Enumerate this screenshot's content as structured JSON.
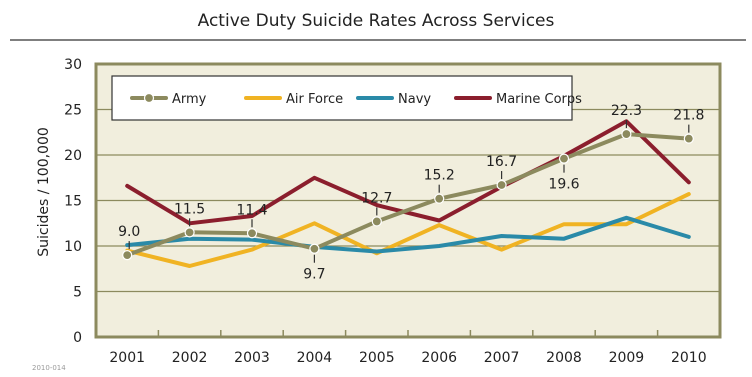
{
  "chart_data": {
    "type": "line",
    "title": "Active Duty Suicide Rates Across Services",
    "ylabel": "Suicides / 100,000",
    "xlabel": "",
    "footnote": "2010-014",
    "categories": [
      "2001",
      "2002",
      "2003",
      "2004",
      "2005",
      "2006",
      "2007",
      "2008",
      "2009",
      "2010"
    ],
    "ylim": [
      0,
      30
    ],
    "yticks": [
      0,
      5,
      10,
      15,
      20,
      25,
      30
    ],
    "grid": true,
    "legend_position": "top-left",
    "series": [
      {
        "name": "Army",
        "color": "#8c8a5e",
        "marker": "circle",
        "values": [
          9.0,
          11.5,
          11.4,
          9.7,
          12.7,
          15.2,
          16.7,
          19.6,
          22.3,
          21.8
        ],
        "labels": [
          "9.0",
          "11.5",
          "11.4",
          "9.7",
          "12.7",
          "15.2",
          "16.7",
          "19.6",
          "22.3",
          "21.8"
        ]
      },
      {
        "name": "Air Force",
        "color": "#f0b323",
        "marker": "none",
        "values": [
          9.5,
          7.8,
          9.6,
          12.5,
          9.2,
          12.3,
          9.6,
          12.4,
          12.4,
          15.7
        ]
      },
      {
        "name": "Navy",
        "color": "#2a8aa8",
        "marker": "none",
        "values": [
          10.1,
          10.8,
          10.7,
          9.9,
          9.4,
          10.0,
          11.1,
          10.8,
          13.1,
          11.0
        ]
      },
      {
        "name": "Marine Corps",
        "color": "#8b1e2d",
        "marker": "none",
        "values": [
          16.6,
          12.5,
          13.3,
          17.5,
          14.5,
          12.8,
          16.5,
          19.9,
          23.7,
          17.0
        ]
      }
    ],
    "style": {
      "plot_background": "#f1eedd",
      "plot_border": "#8c8a5e",
      "grid_color": "#8c8a5e",
      "frame_line": "#333333"
    }
  }
}
